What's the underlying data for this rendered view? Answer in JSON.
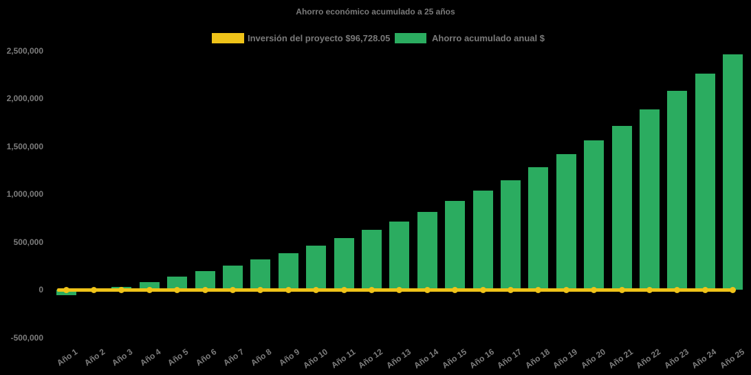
{
  "title": "Ahorro económico acumulado a 25 años",
  "legend": {
    "items": [
      {
        "label": "Inversión del proyecto $96,728.05",
        "color": "#efc319",
        "kind": "line"
      },
      {
        "label": "Ahorro acumulado anual $",
        "color": "#2bac60",
        "kind": "bar"
      }
    ]
  },
  "colors": {
    "background": "#000000",
    "bar_green": "#2bac60",
    "line_yellow": "#efc319",
    "text_gray": "#7a7a7a"
  },
  "chart_data": {
    "type": "bar",
    "title": "Ahorro económico acumulado a 25 años",
    "categories": [
      "Año 1",
      "Año 2",
      "Año 3",
      "Año 4",
      "Año 5",
      "Año 6",
      "Año 7",
      "Año 8",
      "Año 9",
      "Año 10",
      "Año 11",
      "Año 12",
      "Año 13",
      "Año 14",
      "Año 15",
      "Año 16",
      "Año 17",
      "Año 18",
      "Año 19",
      "Año 20",
      "Año 21",
      "Año 22",
      "Año 23",
      "Año 24",
      "Año 25"
    ],
    "series": [
      {
        "name": "Ahorro acumulado anual $",
        "type": "bar",
        "color": "#2bac60",
        "values": [
          -58000,
          -12000,
          32000,
          84000,
          137000,
          196000,
          252000,
          322000,
          387000,
          462000,
          543000,
          627000,
          718000,
          814000,
          927000,
          1035000,
          1147000,
          1282000,
          1419000,
          1563000,
          1714000,
          1886000,
          2078000,
          2258000,
          2464000
        ]
      },
      {
        "name": "Inversión del proyecto $96,728.05",
        "type": "line",
        "color": "#efc319",
        "values": [
          0,
          0,
          0,
          0,
          0,
          0,
          0,
          0,
          0,
          0,
          0,
          0,
          0,
          0,
          0,
          0,
          0,
          0,
          0,
          0,
          0,
          0,
          0,
          0,
          0
        ]
      }
    ],
    "xlabel": "",
    "ylabel": "",
    "ylim": [
      -500000,
      2500000
    ],
    "yticks": [
      2500000,
      2000000,
      1500000,
      1000000,
      500000,
      0,
      -500000
    ],
    "yticklabels": [
      "2,500,000",
      "2,000,000",
      "1,500,000",
      "1,000,000",
      "500,000",
      "0",
      "-500,000"
    ],
    "grid": false,
    "legend_position": "top-center",
    "background": "#000000"
  }
}
